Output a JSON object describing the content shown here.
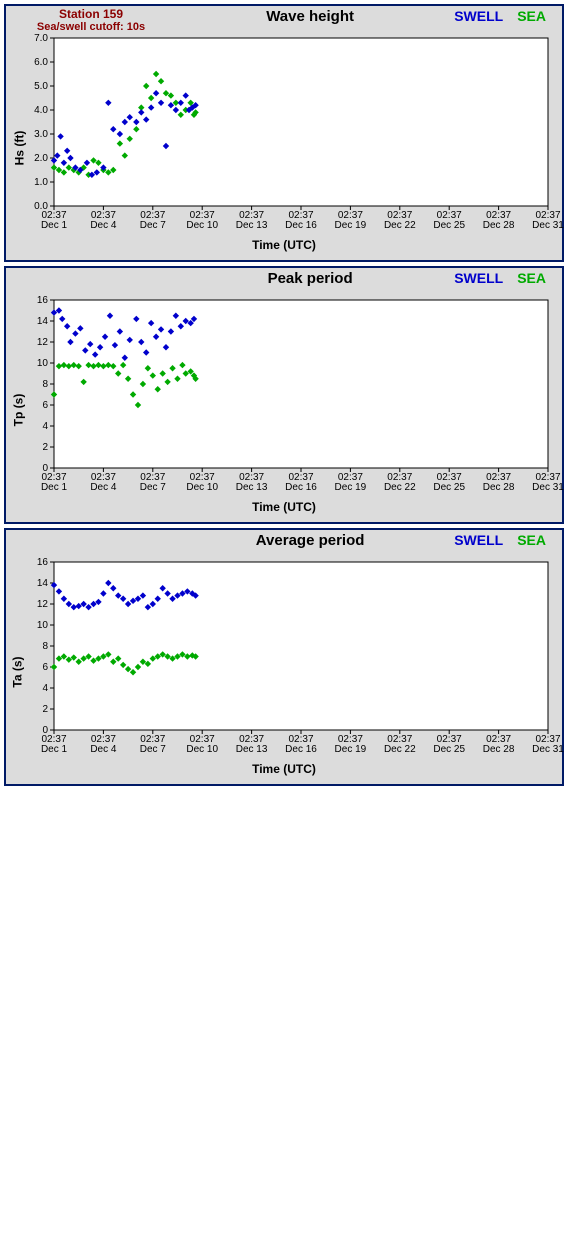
{
  "station": {
    "line1": "Station 159",
    "line2": "Sea/swell cutoff: 10s",
    "color": "#8b0000"
  },
  "legend": {
    "swell": "SWELL",
    "sea": "SEA",
    "swell_color": "#0000cc",
    "sea_color": "#00aa00"
  },
  "xaxis": {
    "label": "Time (UTC)",
    "min": 0,
    "max": 30,
    "ticks": [
      0,
      3,
      6,
      9,
      12,
      15,
      18,
      21,
      24,
      27,
      30
    ],
    "tick_top": [
      "02:37",
      "02:37",
      "02:37",
      "02:37",
      "02:37",
      "02:37",
      "02:37",
      "02:37",
      "02:37",
      "02:37",
      "02:37"
    ],
    "tick_bot": [
      "Dec 1",
      "Dec 4",
      "Dec 7",
      "Dec 10",
      "Dec 13",
      "Dec 16",
      "Dec 19",
      "Dec 22",
      "Dec 25",
      "Dec 28",
      "Dec 31"
    ]
  },
  "plot_colors": {
    "bg": "#ffffff",
    "border": "#000000",
    "marker_swell": "#0000cc",
    "marker_sea": "#00aa00"
  },
  "marker_size": 3.2,
  "charts": [
    {
      "id": "hs",
      "title": "Wave height",
      "ylabel": "Hs (ft)",
      "show_station": true,
      "ymin": 0,
      "ymax": 7,
      "yticks": [
        0,
        1,
        2,
        3,
        4,
        5,
        6,
        7
      ],
      "ytick_labels": [
        "0.0",
        "1.0",
        "2.0",
        "3.0",
        "4.0",
        "5.0",
        "6.0",
        "7.0"
      ],
      "swell": [
        [
          0,
          1.9
        ],
        [
          0.2,
          2.1
        ],
        [
          0.4,
          2.9
        ],
        [
          0.6,
          1.8
        ],
        [
          0.8,
          2.3
        ],
        [
          1.0,
          2.0
        ],
        [
          1.3,
          1.6
        ],
        [
          1.6,
          1.5
        ],
        [
          2.0,
          1.8
        ],
        [
          2.3,
          1.3
        ],
        [
          2.6,
          1.4
        ],
        [
          3.0,
          1.6
        ],
        [
          3.3,
          4.3
        ],
        [
          3.6,
          3.2
        ],
        [
          4.0,
          3.0
        ],
        [
          4.3,
          3.5
        ],
        [
          4.6,
          3.7
        ],
        [
          5.0,
          3.5
        ],
        [
          5.3,
          3.9
        ],
        [
          5.6,
          3.6
        ],
        [
          5.9,
          4.1
        ],
        [
          6.2,
          4.7
        ],
        [
          6.5,
          4.3
        ],
        [
          6.8,
          2.5
        ],
        [
          7.1,
          4.2
        ],
        [
          7.4,
          4.0
        ],
        [
          7.7,
          4.3
        ],
        [
          8.0,
          4.6
        ],
        [
          8.2,
          4.0
        ],
        [
          8.4,
          4.1
        ],
        [
          8.6,
          4.2
        ]
      ],
      "sea": [
        [
          0,
          1.6
        ],
        [
          0.3,
          1.5
        ],
        [
          0.6,
          1.4
        ],
        [
          0.9,
          1.6
        ],
        [
          1.2,
          1.5
        ],
        [
          1.5,
          1.4
        ],
        [
          1.8,
          1.6
        ],
        [
          2.1,
          1.3
        ],
        [
          2.4,
          1.9
        ],
        [
          2.7,
          1.8
        ],
        [
          3.0,
          1.5
        ],
        [
          3.3,
          1.4
        ],
        [
          3.6,
          1.5
        ],
        [
          4.0,
          2.6
        ],
        [
          4.3,
          2.1
        ],
        [
          4.6,
          2.8
        ],
        [
          5.0,
          3.2
        ],
        [
          5.3,
          4.1
        ],
        [
          5.6,
          5.0
        ],
        [
          5.9,
          4.5
        ],
        [
          6.2,
          5.5
        ],
        [
          6.5,
          5.2
        ],
        [
          6.8,
          4.7
        ],
        [
          7.1,
          4.6
        ],
        [
          7.4,
          4.3
        ],
        [
          7.7,
          3.8
        ],
        [
          8.0,
          4.0
        ],
        [
          8.3,
          4.3
        ],
        [
          8.5,
          3.8
        ],
        [
          8.6,
          3.9
        ]
      ]
    },
    {
      "id": "tp",
      "title": "Peak period",
      "ylabel": "Tp (s)",
      "show_station": false,
      "ymin": 0,
      "ymax": 16,
      "yticks": [
        0,
        2,
        4,
        6,
        8,
        10,
        12,
        14,
        16
      ],
      "ytick_labels": [
        "0",
        "2",
        "4",
        "6",
        "8",
        "10",
        "12",
        "14",
        "16"
      ],
      "swell": [
        [
          0,
          14.8
        ],
        [
          0.3,
          15.0
        ],
        [
          0.5,
          14.2
        ],
        [
          0.8,
          13.5
        ],
        [
          1.0,
          12.0
        ],
        [
          1.3,
          12.8
        ],
        [
          1.6,
          13.3
        ],
        [
          1.9,
          11.2
        ],
        [
          2.2,
          11.8
        ],
        [
          2.5,
          10.8
        ],
        [
          2.8,
          11.5
        ],
        [
          3.1,
          12.5
        ],
        [
          3.4,
          14.5
        ],
        [
          3.7,
          11.7
        ],
        [
          4.0,
          13.0
        ],
        [
          4.3,
          10.5
        ],
        [
          4.6,
          12.2
        ],
        [
          5.0,
          14.2
        ],
        [
          5.3,
          12.0
        ],
        [
          5.6,
          11.0
        ],
        [
          5.9,
          13.8
        ],
        [
          6.2,
          12.5
        ],
        [
          6.5,
          13.2
        ],
        [
          6.8,
          11.5
        ],
        [
          7.1,
          13.0
        ],
        [
          7.4,
          14.5
        ],
        [
          7.7,
          13.5
        ],
        [
          8.0,
          14.0
        ],
        [
          8.3,
          13.8
        ],
        [
          8.5,
          14.2
        ]
      ],
      "sea": [
        [
          0,
          7.0
        ],
        [
          0.3,
          9.7
        ],
        [
          0.6,
          9.8
        ],
        [
          0.9,
          9.7
        ],
        [
          1.2,
          9.8
        ],
        [
          1.5,
          9.7
        ],
        [
          1.8,
          8.2
        ],
        [
          2.1,
          9.8
        ],
        [
          2.4,
          9.7
        ],
        [
          2.7,
          9.8
        ],
        [
          3.0,
          9.7
        ],
        [
          3.3,
          9.8
        ],
        [
          3.6,
          9.7
        ],
        [
          3.9,
          9.0
        ],
        [
          4.2,
          9.8
        ],
        [
          4.5,
          8.5
        ],
        [
          4.8,
          7.0
        ],
        [
          5.1,
          6.0
        ],
        [
          5.4,
          8.0
        ],
        [
          5.7,
          9.5
        ],
        [
          6.0,
          8.8
        ],
        [
          6.3,
          7.5
        ],
        [
          6.6,
          9.0
        ],
        [
          6.9,
          8.2
        ],
        [
          7.2,
          9.5
        ],
        [
          7.5,
          8.5
        ],
        [
          7.8,
          9.8
        ],
        [
          8.0,
          9.0
        ],
        [
          8.3,
          9.2
        ],
        [
          8.5,
          8.8
        ],
        [
          8.6,
          8.5
        ]
      ]
    },
    {
      "id": "ta",
      "title": "Average period",
      "ylabel": "Ta (s)",
      "show_station": false,
      "ymin": 0,
      "ymax": 16,
      "yticks": [
        0,
        2,
        4,
        6,
        8,
        10,
        12,
        14,
        16
      ],
      "ytick_labels": [
        "0",
        "2",
        "4",
        "6",
        "8",
        "10",
        "12",
        "14",
        "16"
      ],
      "swell": [
        [
          0,
          13.8
        ],
        [
          0.3,
          13.2
        ],
        [
          0.6,
          12.5
        ],
        [
          0.9,
          12.0
        ],
        [
          1.2,
          11.7
        ],
        [
          1.5,
          11.8
        ],
        [
          1.8,
          12.0
        ],
        [
          2.1,
          11.7
        ],
        [
          2.4,
          12.0
        ],
        [
          2.7,
          12.2
        ],
        [
          3.0,
          13.0
        ],
        [
          3.3,
          14.0
        ],
        [
          3.6,
          13.5
        ],
        [
          3.9,
          12.8
        ],
        [
          4.2,
          12.5
        ],
        [
          4.5,
          12.0
        ],
        [
          4.8,
          12.3
        ],
        [
          5.1,
          12.5
        ],
        [
          5.4,
          12.8
        ],
        [
          5.7,
          11.7
        ],
        [
          6.0,
          12.0
        ],
        [
          6.3,
          12.5
        ],
        [
          6.6,
          13.5
        ],
        [
          6.9,
          13.0
        ],
        [
          7.2,
          12.5
        ],
        [
          7.5,
          12.8
        ],
        [
          7.8,
          13.0
        ],
        [
          8.1,
          13.2
        ],
        [
          8.4,
          13.0
        ],
        [
          8.6,
          12.8
        ]
      ],
      "sea": [
        [
          0,
          6.0
        ],
        [
          0.3,
          6.8
        ],
        [
          0.6,
          7.0
        ],
        [
          0.9,
          6.7
        ],
        [
          1.2,
          6.9
        ],
        [
          1.5,
          6.5
        ],
        [
          1.8,
          6.8
        ],
        [
          2.1,
          7.0
        ],
        [
          2.4,
          6.6
        ],
        [
          2.7,
          6.8
        ],
        [
          3.0,
          7.0
        ],
        [
          3.3,
          7.2
        ],
        [
          3.6,
          6.5
        ],
        [
          3.9,
          6.8
        ],
        [
          4.2,
          6.2
        ],
        [
          4.5,
          5.8
        ],
        [
          4.8,
          5.5
        ],
        [
          5.1,
          6.0
        ],
        [
          5.4,
          6.5
        ],
        [
          5.7,
          6.3
        ],
        [
          6.0,
          6.8
        ],
        [
          6.3,
          7.0
        ],
        [
          6.6,
          7.2
        ],
        [
          6.9,
          7.0
        ],
        [
          7.2,
          6.8
        ],
        [
          7.5,
          7.0
        ],
        [
          7.8,
          7.2
        ],
        [
          8.1,
          7.0
        ],
        [
          8.4,
          7.1
        ],
        [
          8.6,
          7.0
        ]
      ]
    }
  ]
}
